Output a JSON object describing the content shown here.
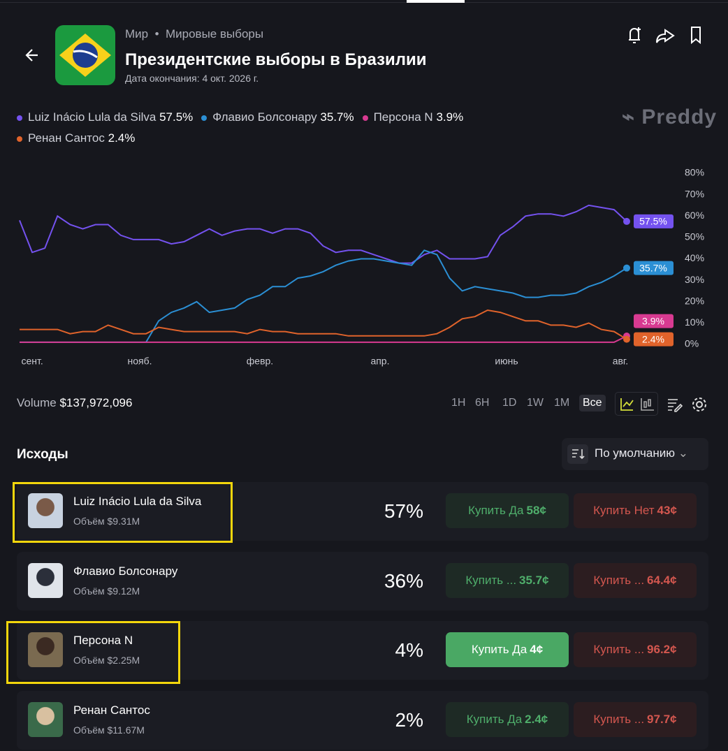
{
  "header": {
    "breadcrumb": [
      "Мир",
      "Мировые выборы"
    ],
    "title": "Президентские выборы в Бразилии",
    "end_date": "Дата окончания: 4 окт. 2026 г.",
    "brand": "Preddy"
  },
  "chart_data": {
    "type": "line",
    "x": [
      0,
      1,
      2,
      3,
      4,
      5,
      6,
      7,
      8,
      9,
      10,
      11,
      12,
      13,
      14,
      15,
      16,
      17,
      18,
      19,
      20,
      21,
      22,
      23,
      24,
      25,
      26,
      27,
      28,
      29,
      30,
      31,
      32,
      33,
      34,
      35,
      36,
      37,
      38,
      39,
      40,
      41,
      42,
      43,
      44,
      45,
      46,
      47,
      48
    ],
    "xlim": [
      0,
      48
    ],
    "xticks": [
      {
        "value": 1,
        "label": "сент."
      },
      {
        "value": 9.5,
        "label": "нояб."
      },
      {
        "value": 19,
        "label": "февр."
      },
      {
        "value": 28.5,
        "label": "апр."
      },
      {
        "value": 38.5,
        "label": "июнь"
      },
      {
        "value": 47.5,
        "label": "авг."
      }
    ],
    "ylim": [
      0,
      80
    ],
    "yticks": [
      {
        "value": 0,
        "label": "0%"
      },
      {
        "value": 10,
        "label": "10%"
      },
      {
        "value": 20,
        "label": "20%"
      },
      {
        "value": 30,
        "label": "30%"
      },
      {
        "value": 40,
        "label": "40%"
      },
      {
        "value": 50,
        "label": "50%"
      },
      {
        "value": 60,
        "label": "60%"
      },
      {
        "value": 70,
        "label": "70%"
      },
      {
        "value": 80,
        "label": "80%"
      }
    ],
    "series": [
      {
        "name": "Luiz Inácio Lula da Silva",
        "color": "#7452ef",
        "last_label": "57.5%",
        "values": [
          58,
          43,
          45,
          60,
          56,
          54,
          56,
          56,
          51,
          49,
          49,
          49,
          47,
          48,
          51,
          54,
          51,
          53,
          54,
          54,
          52,
          54,
          54,
          52,
          46,
          43,
          44,
          44,
          42,
          40,
          38,
          38,
          42,
          44,
          40,
          40,
          40,
          41,
          51,
          55,
          60,
          61,
          61,
          60,
          62,
          65,
          64,
          63,
          57.5
        ]
      },
      {
        "name": "Флавио Болсонару",
        "color": "#2b8fd4",
        "last_label": "35.7%",
        "values": [
          1,
          1,
          1,
          1,
          1,
          1,
          1,
          1,
          1,
          1,
          1,
          11,
          15,
          17,
          20,
          15,
          16,
          17,
          21,
          23,
          27,
          27,
          31,
          32,
          34,
          37,
          39,
          40,
          40,
          39,
          38,
          37,
          44,
          42,
          31,
          25,
          27,
          26,
          25,
          24,
          22,
          22,
          23,
          23,
          24,
          27,
          29,
          32,
          35.7
        ]
      },
      {
        "name": "Персона N",
        "color": "#d83a91",
        "last_label": "3.9%",
        "values": [
          1,
          1,
          1,
          1,
          1,
          1,
          1,
          1,
          1,
          1,
          1,
          1,
          1,
          1,
          1,
          1,
          1,
          1,
          1,
          1,
          1,
          1,
          1,
          1,
          1,
          1,
          1,
          1,
          1,
          1,
          1,
          1,
          1,
          1,
          1,
          1,
          1,
          1,
          1,
          1,
          1,
          1,
          1,
          1,
          1,
          1,
          1,
          1,
          3.9
        ]
      },
      {
        "name": "Ренан Сантос",
        "color": "#e0632b",
        "last_label": "2.4%",
        "values": [
          7,
          7,
          7,
          7,
          5,
          6,
          6,
          9,
          7,
          5,
          5,
          8,
          7,
          6,
          6,
          6,
          6,
          6,
          5,
          7,
          6,
          6,
          5,
          5,
          5,
          5,
          4,
          4,
          4,
          4,
          4,
          4,
          4,
          5,
          8,
          12,
          13,
          16,
          15,
          13,
          11,
          11,
          9,
          9,
          8,
          10,
          7,
          6,
          2.4
        ]
      }
    ]
  },
  "toolbar": {
    "volume_label": "Volume",
    "volume": "$137,972,096",
    "ranges": [
      "1H",
      "6H",
      "1D",
      "1W",
      "1M",
      "Все"
    ],
    "active_range": 5
  },
  "outcomes": {
    "title": "Исходы",
    "sort": "По умолчанию",
    "rows": [
      {
        "name": "Luiz Inácio Lula da Silva",
        "volume": "Объём $9.31M",
        "percent": "57%",
        "yes_label": "Купить Да",
        "yes_price": "58¢",
        "no_label": "Купить Нет",
        "no_price": "43¢",
        "highlight": true
      },
      {
        "name": "Флавио Болсонару",
        "volume": "Объём $9.12M",
        "percent": "36%",
        "yes_label": "Купить ...",
        "yes_price": "35.7¢",
        "no_label": "Купить ...",
        "no_price": "64.4¢",
        "highlight": false
      },
      {
        "name": "Персона N",
        "volume": "Объём $2.25M",
        "percent": "4%",
        "yes_label": "Купить Да",
        "yes_price": "4¢",
        "no_label": "Купить ...",
        "no_price": "96.2¢",
        "highlight": true,
        "active": true
      },
      {
        "name": "Ренан Сантос",
        "volume": "Объём $11.67M",
        "percent": "2%",
        "yes_label": "Купить Да",
        "yes_price": "2.4¢",
        "no_label": "Купить ...",
        "no_price": "97.7¢",
        "highlight": false
      }
    ]
  }
}
